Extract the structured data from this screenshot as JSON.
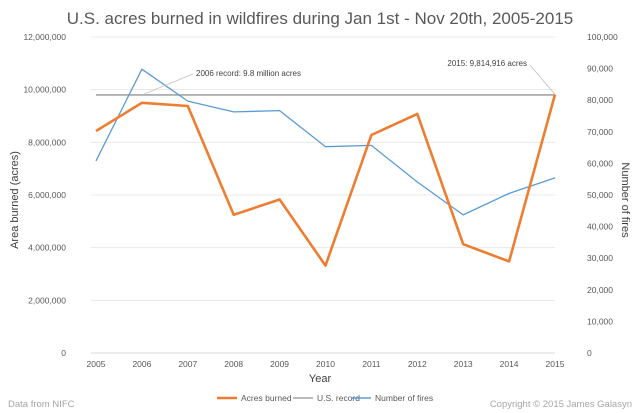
{
  "chart_data": {
    "type": "line",
    "title": "U.S. acres burned in wildfires during Jan 1st - Nov 20th, 2005-2015",
    "xlabel": "Year",
    "ylabel": "Area burned (acres)",
    "y2label": "Number of fires",
    "categories": [
      "2005",
      "2006",
      "2007",
      "2008",
      "2009",
      "2010",
      "2011",
      "2012",
      "2013",
      "2014",
      "2015"
    ],
    "series": [
      {
        "name": "Acres burned",
        "axis": "left",
        "color": "#ed7d31",
        "values": [
          8430000,
          9500000,
          9380000,
          5250000,
          5830000,
          3320000,
          8280000,
          9080000,
          4130000,
          3480000,
          9814916
        ]
      },
      {
        "name": "U.S. record",
        "axis": "left",
        "color": "#a5a5a5",
        "values": [
          9800000,
          9800000,
          9800000,
          9800000,
          9800000,
          9800000,
          9800000,
          9800000,
          9800000,
          9800000,
          9800000
        ]
      },
      {
        "name": "Number of fires",
        "axis": "right",
        "color": "#5b9bd5",
        "values": [
          60800,
          89800,
          79700,
          76300,
          76700,
          65300,
          65700,
          54100,
          43700,
          50500,
          55400
        ]
      }
    ],
    "ylim": [
      0,
      12000000
    ],
    "y2lim": [
      0,
      100000
    ],
    "yticks": [
      "0",
      "2,000,000",
      "4,000,000",
      "6,000,000",
      "8,000,000",
      "10,000,000",
      "12,000,000"
    ],
    "y2ticks": [
      "0",
      "10,000",
      "20,000",
      "30,000",
      "40,000",
      "50,000",
      "60,000",
      "70,000",
      "80,000",
      "90,000",
      "100,000"
    ],
    "annotations": [
      {
        "text": "2006 record: 9.8 million acres",
        "year": "2006",
        "value": 9800000
      },
      {
        "text": "2015: 9,814,916 acres",
        "year": "2015",
        "value": 9814916
      }
    ],
    "grid": true,
    "legend_position": "bottom"
  },
  "footer": {
    "source": "Data from NIFC",
    "copyright": "Copyright © 2015 James Galasyn"
  }
}
